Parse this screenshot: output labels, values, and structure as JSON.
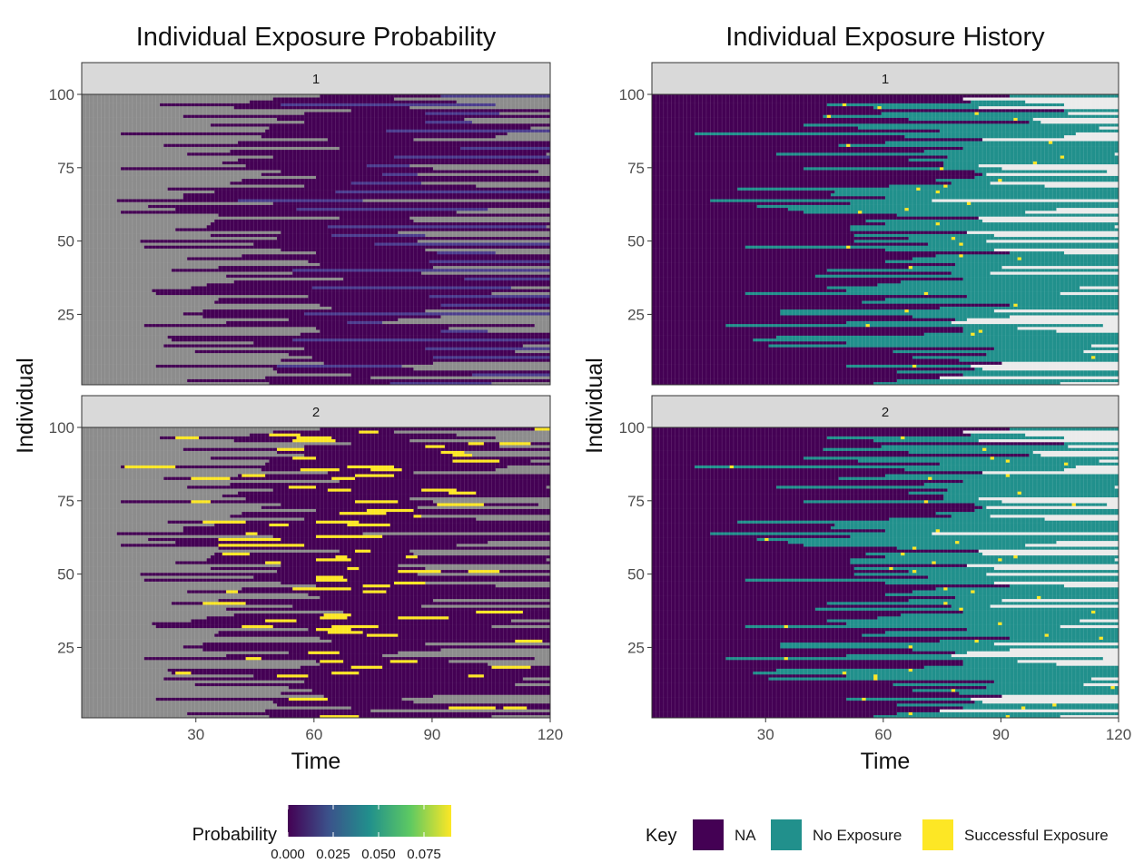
{
  "chart_data": [
    {
      "type": "heatmap",
      "title": "Individual Exposure Probability",
      "xlabel": "Time",
      "ylabel": "Individual",
      "xlim": [
        1,
        120
      ],
      "ylim": [
        1,
        100
      ],
      "x_ticks": [
        30,
        60,
        90,
        120
      ],
      "y_ticks": [
        25,
        50,
        75,
        100
      ],
      "panels": [
        "1",
        "2"
      ],
      "na_color": "#8c8c8c",
      "legend": {
        "title": "Probability",
        "type": "colorbar",
        "range": [
          0,
          0.09
        ],
        "ticks": [
          0,
          0.025,
          0.05,
          0.075
        ],
        "tick_labels": [
          "0.000",
          "0.025",
          "0.050",
          "0.075"
        ],
        "colors": [
          "#440154",
          "#3b528b",
          "#21908c",
          "#5ec962",
          "#fde725"
        ]
      },
      "panel_values": {
        "1": "low probability values (dark purple / slate blue) after first entry; gray (NA) before",
        "2": "dark purple cells with scattered high-probability (yellow) runs"
      }
    },
    {
      "type": "heatmap",
      "title": "Individual Exposure History",
      "xlabel": "Time",
      "ylabel": "Individual",
      "xlim": [
        1,
        120
      ],
      "ylim": [
        1,
        100
      ],
      "x_ticks": [
        30,
        60,
        90,
        120
      ],
      "y_ticks": [
        25,
        50,
        75,
        100
      ],
      "panels": [
        "1",
        "2"
      ],
      "legend": {
        "title": "Key",
        "type": "discrete",
        "items": [
          {
            "label": "NA",
            "color": "#440154"
          },
          {
            "label": "No Exposure",
            "color": "#21908c"
          },
          {
            "label": "Successful Exposure",
            "color": "#fde725"
          }
        ]
      }
    }
  ]
}
